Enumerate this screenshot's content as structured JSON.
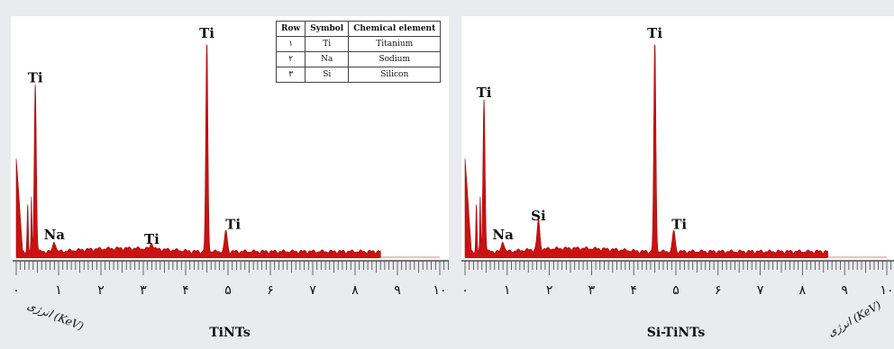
{
  "legend": {
    "headers": [
      "Row",
      "Symbol",
      "Chemical element"
    ],
    "rows": [
      [
        "١",
        "Ti",
        "Titanium"
      ],
      [
        "٢",
        "Na",
        "Sodium"
      ],
      [
        "٣",
        "Si",
        "Silicon"
      ]
    ]
  },
  "chart_data": [
    {
      "type": "area",
      "title": "TiNTs",
      "xlabel": "انرژی (KeV)",
      "x_ticks": [
        "٠",
        "١",
        "٢",
        "٣",
        "۴",
        "۵",
        "۶",
        "٧",
        "٨",
        "٩",
        "١٠"
      ],
      "xlim": [
        0,
        10
      ],
      "ylim": [
        0,
        1
      ],
      "color": "#cc1111",
      "peaks": [
        {
          "label": "Ti",
          "energy": 0.45,
          "height": 0.79
        },
        {
          "label": "Na",
          "energy": 0.9,
          "height": 0.05
        },
        {
          "label": "Ti",
          "energy": 3.2,
          "height": 0.03
        },
        {
          "label": "Ti",
          "energy": 4.5,
          "height": 1.0
        },
        {
          "label": "Ti",
          "energy": 4.95,
          "height": 0.1
        }
      ]
    },
    {
      "type": "area",
      "title": "Si-TiNTs",
      "xlabel": "انرژی (KeV)",
      "x_ticks": [
        "٠",
        "١",
        "٢",
        "٣",
        "۴",
        "۵",
        "۶",
        "٧",
        "٨",
        "٩",
        "١٠"
      ],
      "xlim": [
        0,
        10
      ],
      "ylim": [
        0,
        1
      ],
      "color": "#cc1111",
      "peaks": [
        {
          "label": "Ti",
          "energy": 0.45,
          "height": 0.72
        },
        {
          "label": "Na",
          "energy": 0.9,
          "height": 0.05
        },
        {
          "label": "Si",
          "energy": 1.74,
          "height": 0.14
        },
        {
          "label": "Ti",
          "energy": 4.5,
          "height": 1.0
        },
        {
          "label": "Ti",
          "energy": 4.95,
          "height": 0.1
        }
      ]
    }
  ]
}
